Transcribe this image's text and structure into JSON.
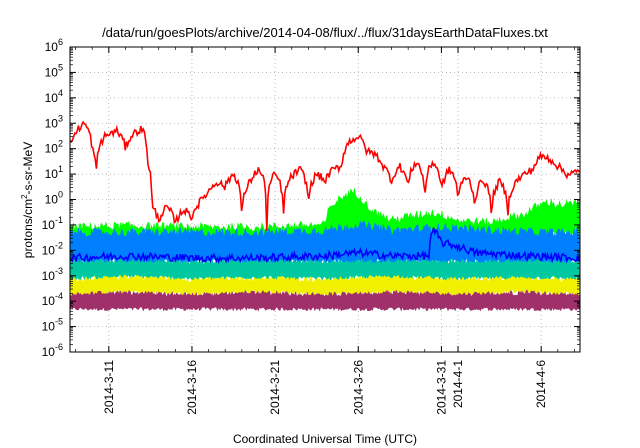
{
  "chart_data": {
    "type": "area",
    "title": "/data/run/goesPlots/archive/2014-04-08/flux/../flux/31daysEarthDataFluxes.txt",
    "xlabel": "Coordinated Universal Time (UTC)",
    "ylabel": {
      "base": "protons/cm",
      "sup": "2",
      "rest": "-s-sr-MeV"
    },
    "y_scale": "log",
    "ylim": [
      1e-06,
      1000000.0
    ],
    "xlim": [
      "2014-03-08T16:00",
      "2014-04-08T08:00"
    ],
    "grid": true,
    "legend": "none",
    "y_ticks": [
      {
        "value": 1e-06,
        "label": "10",
        "exp": "-6"
      },
      {
        "value": 1e-05,
        "label": "10",
        "exp": "-5"
      },
      {
        "value": 0.0001,
        "label": "10",
        "exp": "-4"
      },
      {
        "value": 0.001,
        "label": "10",
        "exp": "-3"
      },
      {
        "value": 0.01,
        "label": "10",
        "exp": "-2"
      },
      {
        "value": 0.1,
        "label": "10",
        "exp": "-1"
      },
      {
        "value": 1.0,
        "label": "10",
        "exp": "0"
      },
      {
        "value": 10.0,
        "label": "10",
        "exp": "1"
      },
      {
        "value": 100.0,
        "label": "10",
        "exp": "2"
      },
      {
        "value": 1000.0,
        "label": "10",
        "exp": "3"
      },
      {
        "value": 10000.0,
        "label": "10",
        "exp": "4"
      },
      {
        "value": 100000.0,
        "label": "10",
        "exp": "5"
      },
      {
        "value": 1000000.0,
        "label": "10",
        "exp": "6"
      }
    ],
    "x_ticks": [
      {
        "date": "2014-03-11",
        "label": "2014-3-11"
      },
      {
        "date": "2014-03-16",
        "label": "2014-3-16"
      },
      {
        "date": "2014-03-21",
        "label": "2014-3-21"
      },
      {
        "date": "2014-03-26",
        "label": "2014-3-26"
      },
      {
        "date": "2014-03-31",
        "label": "2014-3-31"
      },
      {
        "date": "2014-04-01",
        "label": "2014-4-1"
      },
      {
        "date": "2014-04-06",
        "label": "2014-4-6"
      }
    ],
    "series": [
      {
        "color": "#a0306a",
        "style": "band",
        "points": [
          [
            "2014-03-08T16:00",
            [
              5e-05,
              0.0002
            ]
          ],
          [
            "2014-03-12",
            [
              5e-05,
              0.00025
            ]
          ],
          [
            "2014-03-16",
            [
              5e-05,
              0.0002
            ]
          ],
          [
            "2014-03-20",
            [
              5e-05,
              0.00025
            ]
          ],
          [
            "2014-03-24",
            [
              5e-05,
              0.0002
            ]
          ],
          [
            "2014-03-28",
            [
              5e-05,
              0.00025
            ]
          ],
          [
            "2014-04-01",
            [
              5e-05,
              0.0002
            ]
          ],
          [
            "2014-04-05",
            [
              5e-05,
              0.00025
            ]
          ],
          [
            "2014-04-08T08:00",
            [
              5e-05,
              0.0002
            ]
          ]
        ]
      },
      {
        "color": "#f0f000",
        "style": "band",
        "points": [
          [
            "2014-03-08T16:00",
            [
              0.0002,
              0.0008
            ]
          ],
          [
            "2014-03-12",
            [
              0.00025,
              0.001
            ]
          ],
          [
            "2014-03-16",
            [
              0.0002,
              0.0008
            ]
          ],
          [
            "2014-03-20",
            [
              0.00025,
              0.0009
            ]
          ],
          [
            "2014-03-24",
            [
              0.0002,
              0.0008
            ]
          ],
          [
            "2014-03-28",
            [
              0.00025,
              0.001
            ]
          ],
          [
            "2014-04-01",
            [
              0.0002,
              0.0008
            ]
          ],
          [
            "2014-04-05",
            [
              0.00025,
              0.0009
            ]
          ],
          [
            "2014-04-08T08:00",
            [
              0.0002,
              0.0008
            ]
          ]
        ]
      },
      {
        "color": "#00c8a0",
        "style": "band",
        "points": [
          [
            "2014-03-08T16:00",
            [
              0.0008,
              0.004
            ]
          ],
          [
            "2014-03-12",
            [
              0.001,
              0.005
            ]
          ],
          [
            "2014-03-16",
            [
              0.0008,
              0.004
            ]
          ],
          [
            "2014-03-20",
            [
              0.0009,
              0.005
            ]
          ],
          [
            "2014-03-24",
            [
              0.0008,
              0.004
            ]
          ],
          [
            "2014-03-28",
            [
              0.001,
              0.005
            ]
          ],
          [
            "2014-04-01",
            [
              0.0008,
              0.004
            ]
          ],
          [
            "2014-04-05",
            [
              0.0009,
              0.005
            ]
          ],
          [
            "2014-04-08T08:00",
            [
              0.0008,
              0.004
            ]
          ]
        ]
      },
      {
        "color": "#00ff00",
        "style": "band",
        "points": [
          [
            "2014-03-08T16:00",
            [
              0.01,
              0.08
            ]
          ],
          [
            "2014-03-12",
            [
              0.01,
              0.09
            ]
          ],
          [
            "2014-03-16",
            [
              0.01,
              0.08
            ]
          ],
          [
            "2014-03-20",
            [
              0.01,
              0.08
            ]
          ],
          [
            "2014-03-24",
            [
              0.01,
              0.1
            ]
          ],
          [
            "2014-03-25T18:00",
            [
              0.02,
              2.0
            ]
          ],
          [
            "2014-03-26T12:00",
            [
              0.02,
              0.6
            ]
          ],
          [
            "2014-03-27",
            [
              0.02,
              0.3
            ]
          ],
          [
            "2014-03-28",
            [
              0.01,
              0.15
            ]
          ],
          [
            "2014-03-30T12:00",
            [
              0.02,
              0.3
            ]
          ],
          [
            "2014-04-01",
            [
              0.01,
              0.15
            ]
          ],
          [
            "2014-04-03",
            [
              0.01,
              0.12
            ]
          ],
          [
            "2014-04-05",
            [
              0.02,
              0.25
            ]
          ],
          [
            "2014-04-06T12:00",
            [
              0.05,
              0.8
            ]
          ],
          [
            "2014-04-07",
            [
              0.05,
              0.6
            ]
          ],
          [
            "2014-04-08T08:00",
            [
              0.05,
              0.7
            ]
          ]
        ]
      },
      {
        "color": "#0080ff",
        "style": "band",
        "points": [
          [
            "2014-03-08T16:00",
            [
              0.004,
              0.05
            ]
          ],
          [
            "2014-03-12",
            [
              0.004,
              0.05
            ]
          ],
          [
            "2014-03-16",
            [
              0.004,
              0.05
            ]
          ],
          [
            "2014-03-20",
            [
              0.004,
              0.05
            ]
          ],
          [
            "2014-03-24",
            [
              0.004,
              0.06
            ]
          ],
          [
            "2014-03-26",
            [
              0.004,
              0.1
            ]
          ],
          [
            "2014-03-28",
            [
              0.004,
              0.06
            ]
          ],
          [
            "2014-03-31",
            [
              0.004,
              0.08
            ]
          ],
          [
            "2014-04-03",
            [
              0.004,
              0.06
            ]
          ],
          [
            "2014-04-06",
            [
              0.004,
              0.05
            ]
          ],
          [
            "2014-04-08T08:00",
            [
              0.004,
              0.05
            ]
          ]
        ]
      },
      {
        "color": "#0000ff",
        "style": "line",
        "points": [
          [
            "2014-03-08T16:00",
            0.005
          ],
          [
            "2014-03-12",
            0.006
          ],
          [
            "2014-03-16",
            0.005
          ],
          [
            "2014-03-20",
            0.005
          ],
          [
            "2014-03-24",
            0.006
          ],
          [
            "2014-03-26",
            0.008
          ],
          [
            "2014-03-28",
            0.006
          ],
          [
            "2014-03-30T06:00",
            0.006
          ],
          [
            "2014-03-30T12:00",
            0.06
          ],
          [
            "2014-03-31",
            0.02
          ],
          [
            "2014-04-02",
            0.008
          ],
          [
            "2014-04-05",
            0.006
          ],
          [
            "2014-04-08T08:00",
            0.005
          ]
        ]
      },
      {
        "color": "#ff0000",
        "style": "line",
        "points": [
          [
            "2014-03-08T16:00",
            150
          ],
          [
            "2014-03-09",
            400
          ],
          [
            "2014-03-09T12:00",
            1000
          ],
          [
            "2014-03-10",
            100
          ],
          [
            "2014-03-10T06:00",
            10
          ],
          [
            "2014-03-10T18:00",
            300
          ],
          [
            "2014-03-11T12:00",
            500
          ],
          [
            "2014-03-12",
            100
          ],
          [
            "2014-03-12T12:00",
            400
          ],
          [
            "2014-03-13",
            600
          ],
          [
            "2014-03-13T08:00",
            30
          ],
          [
            "2014-03-13T14:00",
            0.5
          ],
          [
            "2014-03-14",
            0.15
          ],
          [
            "2014-03-14T12:00",
            0.5
          ],
          [
            "2014-03-15",
            0.1
          ],
          [
            "2014-03-15T12:00",
            0.4
          ],
          [
            "2014-03-16",
            0.2
          ],
          [
            "2014-03-16T12:00",
            0.8
          ],
          [
            "2014-03-17",
            2
          ],
          [
            "2014-03-17T12:00",
            5
          ],
          [
            "2014-03-18",
            3
          ],
          [
            "2014-03-18T12:00",
            10
          ],
          [
            "2014-03-19",
            0.02
          ],
          [
            "2014-03-19T12:00",
            5
          ],
          [
            "2014-03-20",
            15
          ],
          [
            "2014-03-20T12:00",
            0.05
          ],
          [
            "2014-03-21",
            10
          ],
          [
            "2014-03-21T12:00",
            0.1
          ],
          [
            "2014-03-22",
            8
          ],
          [
            "2014-03-22T12:00",
            15
          ],
          [
            "2014-03-23",
            0.5
          ],
          [
            "2014-03-23T12:00",
            10
          ],
          [
            "2014-03-24",
            5
          ],
          [
            "2014-03-24T12:00",
            15
          ],
          [
            "2014-03-25",
            20
          ],
          [
            "2014-03-25T12:00",
            200
          ],
          [
            "2014-03-26",
            300
          ],
          [
            "2014-03-26T12:00",
            80
          ],
          [
            "2014-03-27",
            60
          ],
          [
            "2014-03-27T12:00",
            20
          ],
          [
            "2014-03-28",
            5
          ],
          [
            "2014-03-28T12:00",
            20
          ],
          [
            "2014-03-29",
            3
          ],
          [
            "2014-03-29T12:00",
            30
          ],
          [
            "2014-03-30",
            0.5
          ],
          [
            "2014-03-30T12:00",
            30
          ],
          [
            "2014-03-31",
            2
          ],
          [
            "2014-03-31T12:00",
            15
          ],
          [
            "2014-04-01",
            1
          ],
          [
            "2014-04-01T12:00",
            8
          ],
          [
            "2014-04-02",
            0.5
          ],
          [
            "2014-04-02T12:00",
            6
          ],
          [
            "2014-04-03",
            0.2
          ],
          [
            "2014-04-03T12:00",
            5
          ],
          [
            "2014-04-04",
            0.3
          ],
          [
            "2014-04-04T12:00",
            5
          ],
          [
            "2014-04-05",
            10
          ],
          [
            "2014-04-05T12:00",
            15
          ],
          [
            "2014-04-06",
            50
          ],
          [
            "2014-04-06T12:00",
            40
          ],
          [
            "2014-04-07",
            20
          ],
          [
            "2014-04-07T12:00",
            10
          ],
          [
            "2014-04-08T08:00",
            12
          ]
        ]
      }
    ]
  }
}
